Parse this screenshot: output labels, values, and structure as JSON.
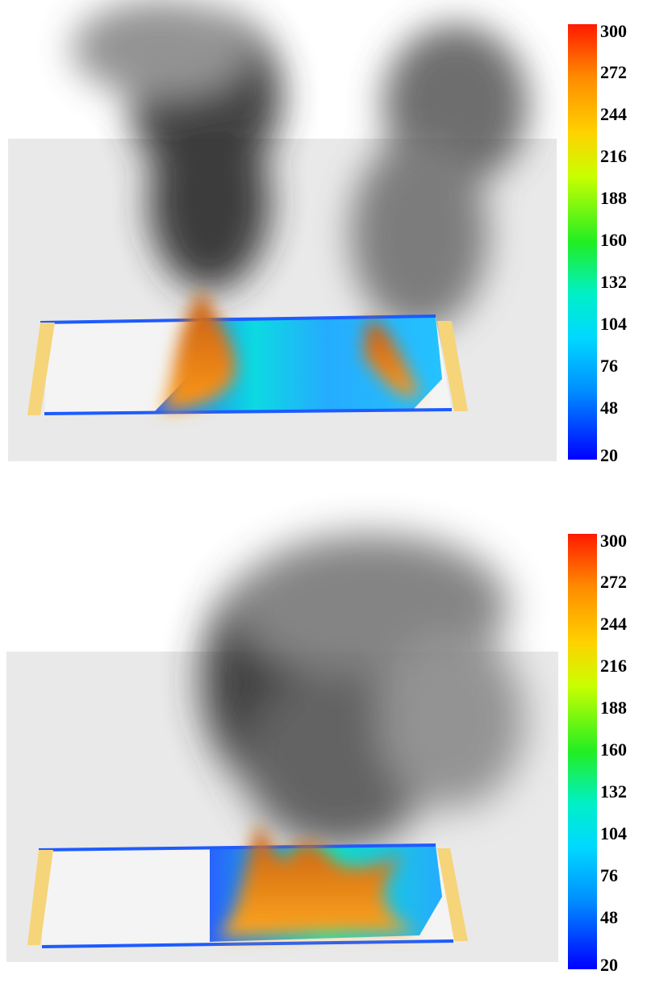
{
  "panels": [
    {
      "colorbar": {
        "min": 20,
        "max": 300,
        "ticks": [
          "300",
          "272",
          "244",
          "216",
          "188",
          "160",
          "132",
          "104",
          "76",
          "48",
          "20"
        ]
      },
      "colors": {
        "hot": "#ff1a00",
        "cold": "#0000ff",
        "frame": "#f6d47a"
      }
    },
    {
      "colorbar": {
        "min": 20,
        "max": 300,
        "ticks": [
          "300",
          "272",
          "244",
          "216",
          "188",
          "160",
          "132",
          "104",
          "76",
          "48",
          "20"
        ]
      },
      "colors": {
        "hot": "#ff1a00",
        "cold": "#0000ff",
        "frame": "#f6d47a"
      }
    }
  ]
}
